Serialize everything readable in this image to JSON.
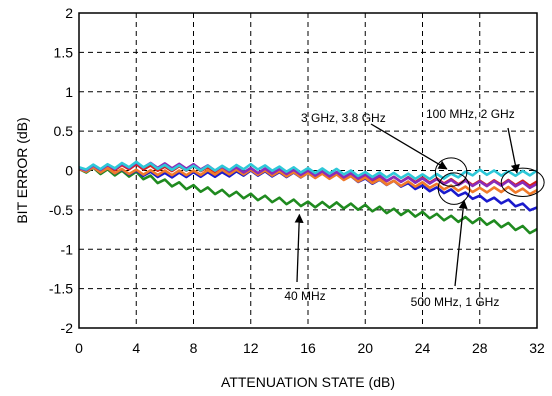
{
  "chart_data": {
    "type": "line",
    "xlabel": "ATTENUATION STATE (dB)",
    "ylabel": "BIT ERROR (dB)",
    "xlim": [
      0,
      32
    ],
    "ylim": [
      -2,
      2
    ],
    "x_ticks": [
      "0",
      "4",
      "8",
      "12",
      "16",
      "20",
      "24",
      "28",
      "32"
    ],
    "y_ticks": [
      "2",
      "1.5",
      "1",
      "0.5",
      "0",
      "-0.5",
      "-1",
      "-1.5",
      "-2"
    ],
    "grid": true,
    "grid_style": "dashed",
    "colors": {
      "green": "#1f8a1f",
      "blue": "#1a1acc",
      "red": "#d42020",
      "orange": "#f07a2a",
      "purple": "#8a2bb8",
      "cyan": "#2ec8d8"
    },
    "series": [
      {
        "color": "green",
        "x": [
          0,
          2,
          4,
          6,
          8,
          10,
          12,
          14,
          16,
          18,
          20,
          22,
          24,
          26,
          28,
          30,
          32
        ],
        "y": [
          0.02,
          -0.02,
          -0.05,
          -0.15,
          -0.22,
          -0.28,
          -0.33,
          -0.38,
          -0.43,
          -0.44,
          -0.47,
          -0.52,
          -0.56,
          -0.61,
          -0.64,
          -0.7,
          -0.78
        ]
      },
      {
        "color": "blue",
        "x": [
          0,
          2,
          4,
          6,
          8,
          10,
          12,
          14,
          16,
          18,
          20,
          22,
          24,
          26,
          28,
          30,
          32
        ],
        "y": [
          0.02,
          0.0,
          -0.03,
          -0.06,
          -0.05,
          -0.05,
          -0.03,
          -0.05,
          -0.06,
          -0.07,
          -0.13,
          -0.16,
          -0.22,
          -0.27,
          -0.35,
          -0.4,
          -0.5
        ]
      },
      {
        "color": "red",
        "x": [
          0,
          2,
          4,
          6,
          8,
          10,
          12,
          14,
          16,
          18,
          20,
          22,
          24,
          26,
          28,
          30,
          32
        ],
        "y": [
          0.02,
          0.03,
          0.05,
          0.02,
          0.03,
          0.0,
          0.0,
          -0.02,
          -0.05,
          -0.06,
          -0.1,
          -0.11,
          -0.12,
          -0.14,
          -0.16,
          -0.15,
          -0.17
        ]
      },
      {
        "color": "orange",
        "x": [
          0,
          2,
          4,
          6,
          8,
          10,
          12,
          14,
          16,
          18,
          20,
          22,
          24,
          26,
          28,
          30,
          32
        ],
        "y": [
          0.02,
          0.0,
          -0.02,
          -0.03,
          -0.03,
          -0.02,
          -0.02,
          -0.04,
          -0.06,
          -0.08,
          -0.12,
          -0.16,
          -0.18,
          -0.22,
          -0.25,
          -0.24,
          -0.28
        ]
      },
      {
        "color": "purple",
        "x": [
          0,
          2,
          4,
          6,
          8,
          10,
          12,
          14,
          16,
          18,
          20,
          22,
          24,
          26,
          28,
          30,
          32
        ],
        "y": [
          0.03,
          0.04,
          0.07,
          0.06,
          0.05,
          0.02,
          0.0,
          -0.01,
          -0.03,
          -0.05,
          -0.08,
          -0.11,
          -0.13,
          -0.15,
          -0.17,
          -0.16,
          -0.2
        ]
      },
      {
        "color": "cyan",
        "x": [
          0,
          2,
          4,
          6,
          8,
          10,
          12,
          14,
          16,
          18,
          20,
          22,
          24,
          26,
          28,
          30,
          32
        ],
        "y": [
          0.04,
          0.05,
          0.08,
          0.04,
          0.03,
          0.03,
          0.05,
          0.02,
          0.0,
          -0.01,
          -0.05,
          -0.06,
          -0.08,
          -0.07,
          -0.02,
          -0.04,
          -0.03
        ]
      }
    ],
    "annotations": [
      {
        "text": "3 GHz, 3.8 GHz",
        "x": 9.0,
        "y": 0.69,
        "arrow_to_x": 25.7,
        "arrow_to_y": 0.02
      },
      {
        "text": "100 MHz, 2 GHz",
        "x": 29.2,
        "y": 0.72,
        "arrow_to_x": 30.6,
        "arrow_to_y": -0.03
      },
      {
        "text": "40 MHz",
        "x": 16.0,
        "y": -1.57,
        "arrow_to_x": 15.4,
        "arrow_to_y": -0.56
      },
      {
        "text": "500 MHz, 1  GHz",
        "x": 26.0,
        "y": -1.7,
        "arrow_to_x": 26.9,
        "arrow_to_y": -0.38
      }
    ],
    "ellipses": [
      {
        "cx": 26.0,
        "cy": -0.02,
        "rx": 0.55,
        "ry": 0.09
      },
      {
        "cx": 31.0,
        "cy": -0.15,
        "rx": 0.75,
        "ry": 0.09
      },
      {
        "cx": 26.2,
        "cy": -0.23,
        "rx": 0.55,
        "ry": 0.1
      }
    ]
  }
}
